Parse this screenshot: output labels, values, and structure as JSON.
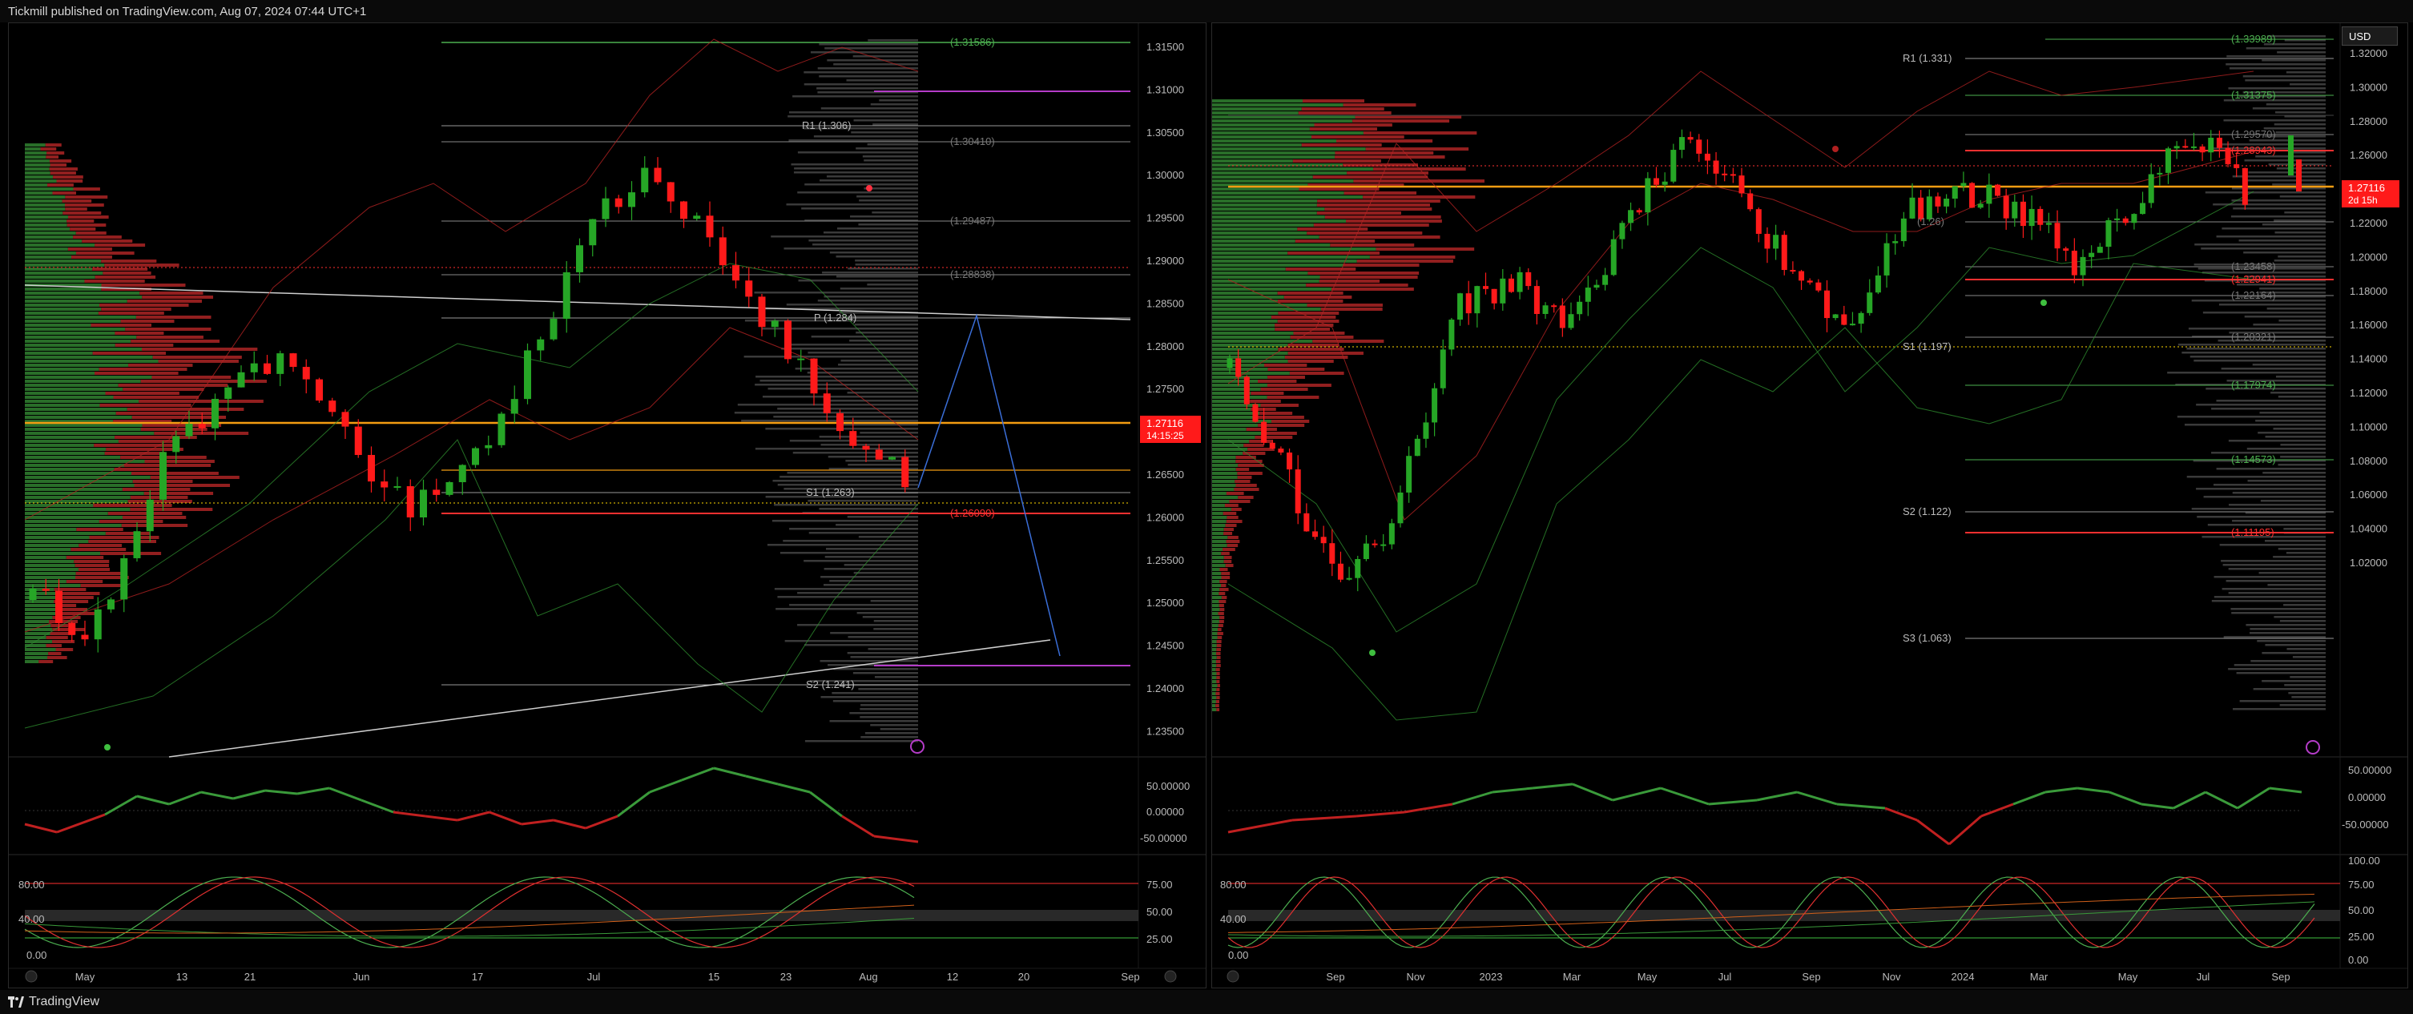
{
  "header": {
    "publisher": "Tickmill published on TradingView.com, Aug 07, 2024 07:44 UTC+1"
  },
  "footer": {
    "brand": "TradingView"
  },
  "left_chart": {
    "price_axis": [
      "1.31500",
      "1.31000",
      "1.30500",
      "1.30000",
      "1.29500",
      "1.29000",
      "1.28500",
      "1.28000",
      "1.27500",
      "1.27000",
      "1.26500",
      "1.26000",
      "1.25500",
      "1.25000",
      "1.24500",
      "1.24000",
      "1.23500"
    ],
    "last_price": "1.27116",
    "countdown": "14:15:25",
    "time_axis": [
      "May",
      "13",
      "21",
      "Jun",
      "17",
      "Jul",
      "15",
      "23",
      "Aug",
      "12",
      "20",
      "Sep"
    ],
    "levels": [
      {
        "label": "(1.31586)",
        "color": "#4caf50"
      },
      {
        "label": "R1 (1.306)",
        "color": "#bbbbbb"
      },
      {
        "label": "(1.30410)",
        "color": "#888888"
      },
      {
        "label": "(1.29487)",
        "color": "#888888"
      },
      {
        "label": "(1.28838)",
        "color": "#888888"
      },
      {
        "label": "P (1.284)",
        "color": "#bbbbbb"
      },
      {
        "label": "S1 (1.263)",
        "color": "#bbbbbb"
      },
      {
        "label": "(1.26090)",
        "color": "#ff3030"
      },
      {
        "label": "S2 (1.241)",
        "color": "#bbbbbb"
      }
    ],
    "osc1_axis": [
      "50.00000",
      "0.00000",
      "-50.00000"
    ],
    "osc2_left_axis": [
      "80.00",
      "40.00",
      "0.00"
    ],
    "osc2_right_axis": [
      "75.00",
      "50.00",
      "25.00"
    ]
  },
  "right_chart": {
    "currency_button": "USD",
    "price_axis": [
      "1.32000",
      "1.30000",
      "1.28000",
      "1.26000",
      "1.24000",
      "1.22000",
      "1.20000",
      "1.18000",
      "1.16000",
      "1.14000",
      "1.12000",
      "1.10000",
      "1.08000",
      "1.06000",
      "1.04000",
      "1.02000"
    ],
    "last_price": "1.27116",
    "countdown": "2d 15h",
    "time_axis": [
      "Sep",
      "Nov",
      "2023",
      "Mar",
      "May",
      "Jul",
      "Sep",
      "Nov",
      "2024",
      "Mar",
      "May",
      "Jul",
      "Sep"
    ],
    "levels": [
      {
        "label": "(1.33989)",
        "color": "#4caf50"
      },
      {
        "label": "R1 (1.331)",
        "color": "#bbbbbb"
      },
      {
        "label": "(1.31375)",
        "color": "#4caf50"
      },
      {
        "label": "(1.29570)",
        "color": "#888888"
      },
      {
        "label": "(1.28943)",
        "color": "#ff3030"
      },
      {
        "label": "(1.26)",
        "color": "#888888"
      },
      {
        "label": "(1.23458)",
        "color": "#888888"
      },
      {
        "label": "(1.22941)",
        "color": "#ff3030"
      },
      {
        "label": "(1.22164)",
        "color": "#888888"
      },
      {
        "label": "(1.20321)",
        "color": "#888888"
      },
      {
        "label": "S1 (1.197)",
        "color": "#bbbbbb"
      },
      {
        "label": "(1.17974)",
        "color": "#4caf50"
      },
      {
        "label": "(1.14573)",
        "color": "#4caf50"
      },
      {
        "label": "S2 (1.122)",
        "color": "#bbbbbb"
      },
      {
        "label": "(1.11195)",
        "color": "#ff3030"
      },
      {
        "label": "S3 (1.063)",
        "color": "#bbbbbb"
      }
    ],
    "osc1_axis": [
      "50.00000",
      "0.00000",
      "-50.00000"
    ],
    "osc2_left_axis": [
      "80.00",
      "40.00",
      "0.00"
    ],
    "osc2_right_axis": [
      "100.00",
      "75.00",
      "50.00",
      "25.00",
      "0.00"
    ]
  },
  "colors": {
    "up": "#26a626",
    "down": "#ff1a1a",
    "orange": "#f39c12",
    "purple": "#b43cc8",
    "blue": "#3a6ed8"
  }
}
